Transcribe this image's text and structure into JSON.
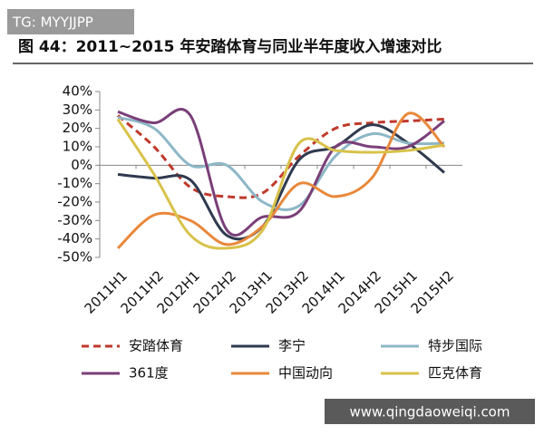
{
  "watermark_top": "TG: MYYJJPP",
  "watermark_bottom": "www.qingdaoweiqi.com",
  "chart_data": {
    "type": "line",
    "title": "图 44：2011~2015 年安踏体育与同业半年度收入增速对比",
    "categories": [
      "2011H1",
      "2011H2",
      "2012H1",
      "2012H2",
      "2013H1",
      "2013H2",
      "2014H1",
      "2014H2",
      "2015H1",
      "2015H2"
    ],
    "series": [
      {
        "name": "安踏体育",
        "color": "#c0392b",
        "dashed": true,
        "values": [
          27,
          10,
          -12,
          -17,
          -15,
          5,
          20,
          23,
          24,
          25
        ]
      },
      {
        "name": "李宁",
        "color": "#2f3a4f",
        "values": [
          -5,
          -7,
          -8,
          -38,
          -33,
          3,
          10,
          22,
          12,
          -4
        ]
      },
      {
        "name": "特步国际",
        "color": "#8db7c6",
        "values": [
          26,
          20,
          0,
          0,
          -20,
          -22,
          5,
          17,
          12,
          12
        ]
      },
      {
        "name": "361度",
        "color": "#7a3f78",
        "values": [
          29,
          23,
          27,
          -35,
          -28,
          -25,
          10,
          10,
          10,
          24
        ]
      },
      {
        "name": "中国动向",
        "color": "#e8883a",
        "values": [
          -45,
          -27,
          -30,
          -43,
          -33,
          -10,
          -17,
          -7,
          28,
          10
        ]
      },
      {
        "name": "匹克体育",
        "color": "#d8c24a",
        "values": [
          25,
          -5,
          -38,
          -45,
          -35,
          12,
          8,
          7,
          8,
          11
        ]
      }
    ],
    "ylim": [
      -50,
      40
    ],
    "yticks": [
      {
        "value": -50,
        "label": "-50%"
      },
      {
        "value": -40,
        "label": "-40%"
      },
      {
        "value": -30,
        "label": "-30%"
      },
      {
        "value": -20,
        "label": "-20%"
      },
      {
        "value": -10,
        "label": "-10%"
      },
      {
        "value": 0,
        "label": "0%"
      },
      {
        "value": 10,
        "label": "10%"
      },
      {
        "value": 20,
        "label": "20%"
      },
      {
        "value": 30,
        "label": "30%"
      },
      {
        "value": 40,
        "label": "40%"
      }
    ],
    "grid": false
  }
}
